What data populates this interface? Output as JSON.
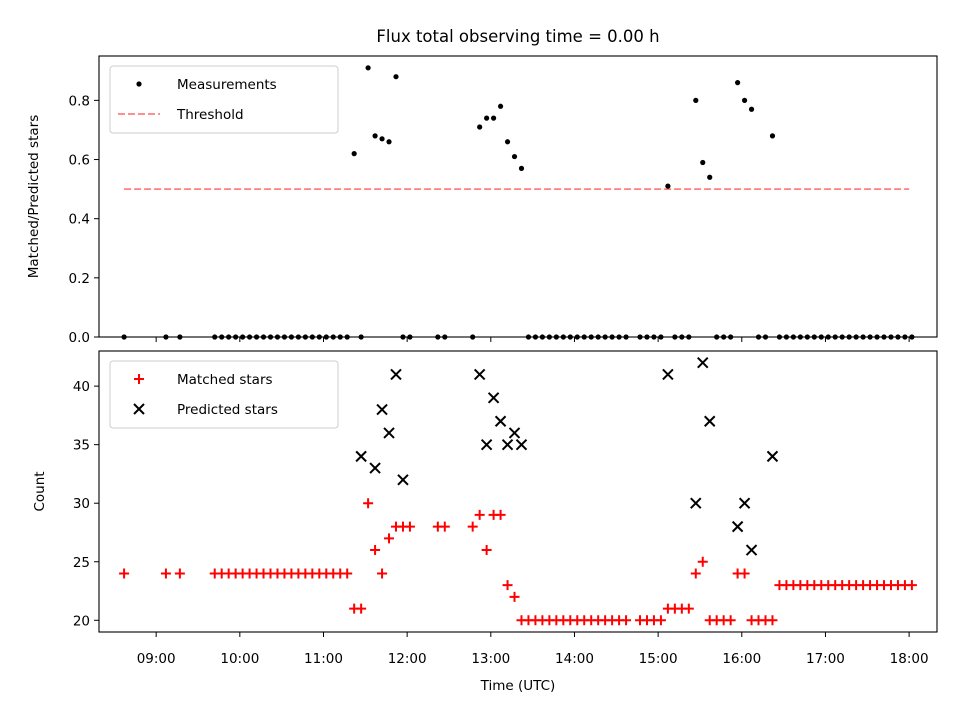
{
  "chart_data": [
    {
      "type": "scatter",
      "title": "Flux total observing time = 0.00 h",
      "ylabel": "Matched/Predicted stars",
      "xlabel": "",
      "ylim": [
        0,
        0.95
      ],
      "yticks": [
        "0.0",
        "0.2",
        "0.4",
        "0.6",
        "0.8"
      ],
      "ytick_values": [
        0,
        0.2,
        0.4,
        0.6,
        0.8
      ],
      "legend_position": "top-left",
      "threshold": {
        "name": "Threshold",
        "value": 0.5,
        "x_range": [
          "08:37",
          "18:00"
        ],
        "color": "#ff7f7f",
        "style": "dashed"
      },
      "series": [
        {
          "name": "Measurements",
          "color": "#000000",
          "marker": "dot",
          "x": [
            "08:37",
            "09:07",
            "09:17",
            "09:42",
            "09:47",
            "09:52",
            "09:57",
            "10:02",
            "10:07",
            "10:12",
            "10:17",
            "10:22",
            "10:27",
            "10:32",
            "10:37",
            "10:42",
            "10:47",
            "10:52",
            "10:57",
            "11:02",
            "11:07",
            "11:12",
            "11:17",
            "11:22",
            "11:27",
            "11:32",
            "11:37",
            "11:42",
            "11:47",
            "11:52",
            "11:57",
            "12:02",
            "12:22",
            "12:27",
            "12:47",
            "12:52",
            "12:57",
            "13:02",
            "13:07",
            "13:12",
            "13:17",
            "13:22",
            "13:27",
            "13:32",
            "13:37",
            "13:42",
            "13:47",
            "13:52",
            "13:57",
            "14:02",
            "14:07",
            "14:12",
            "14:17",
            "14:22",
            "14:27",
            "14:32",
            "14:37",
            "14:47",
            "14:52",
            "14:57",
            "15:02",
            "15:07",
            "15:12",
            "15:17",
            "15:22",
            "15:27",
            "15:32",
            "15:37",
            "15:42",
            "15:47",
            "15:52",
            "15:57",
            "16:02",
            "16:07",
            "16:12",
            "16:17",
            "16:22",
            "16:27",
            "16:32",
            "16:37",
            "16:42",
            "16:47",
            "16:52",
            "16:57",
            "17:02",
            "17:07",
            "17:12",
            "17:17",
            "17:22",
            "17:27",
            "17:32",
            "17:37",
            "17:42",
            "17:47",
            "17:52",
            "17:57",
            "18:02"
          ],
          "y": [
            0,
            0,
            0,
            0,
            0,
            0,
            0,
            0,
            0,
            0,
            0,
            0,
            0,
            0,
            0,
            0,
            0,
            0,
            0,
            0,
            0,
            0,
            0,
            0.62,
            0,
            0.91,
            0.68,
            0.67,
            0.66,
            0.88,
            0,
            0,
            0,
            0,
            0,
            0.71,
            0.74,
            0.74,
            0.78,
            0.66,
            0.61,
            0.57,
            0,
            0,
            0,
            0,
            0,
            0,
            0,
            0,
            0,
            0,
            0,
            0,
            0,
            0,
            0,
            0,
            0,
            0,
            0,
            0.51,
            0,
            0,
            0,
            0.8,
            0.59,
            0.54,
            0,
            0,
            0,
            0.86,
            0.8,
            0.77,
            0,
            0,
            0.68,
            0,
            0,
            0,
            0,
            0,
            0,
            0,
            0,
            0,
            0,
            0,
            0,
            0,
            0,
            0,
            0,
            0,
            0,
            0,
            0
          ]
        }
      ]
    },
    {
      "type": "scatter",
      "title": "",
      "ylabel": "Count",
      "xlabel": "Time (UTC)",
      "ylim": [
        19,
        43
      ],
      "yticks": [
        "20",
        "25",
        "30",
        "35",
        "40"
      ],
      "ytick_values": [
        20,
        25,
        30,
        35,
        40
      ],
      "x_axis_range": [
        "08:19",
        "18:20"
      ],
      "xticks": [
        "09:00",
        "10:00",
        "11:00",
        "12:00",
        "13:00",
        "14:00",
        "15:00",
        "16:00",
        "17:00",
        "18:00"
      ],
      "legend_position": "top-left",
      "series": [
        {
          "name": "Matched stars",
          "color": "#ff0000",
          "marker": "plus",
          "x": [
            "08:37",
            "09:07",
            "09:17",
            "09:42",
            "09:47",
            "09:52",
            "09:57",
            "10:02",
            "10:07",
            "10:12",
            "10:17",
            "10:22",
            "10:27",
            "10:32",
            "10:37",
            "10:42",
            "10:47",
            "10:52",
            "10:57",
            "11:02",
            "11:07",
            "11:12",
            "11:17",
            "11:22",
            "11:27",
            "11:32",
            "11:37",
            "11:42",
            "11:47",
            "11:52",
            "11:57",
            "12:02",
            "12:22",
            "12:27",
            "12:47",
            "12:52",
            "12:57",
            "13:02",
            "13:07",
            "13:12",
            "13:17",
            "13:22",
            "13:27",
            "13:32",
            "13:37",
            "13:42",
            "13:47",
            "13:52",
            "13:57",
            "14:02",
            "14:07",
            "14:12",
            "14:17",
            "14:22",
            "14:27",
            "14:32",
            "14:37",
            "14:47",
            "14:52",
            "14:57",
            "15:02",
            "15:07",
            "15:12",
            "15:17",
            "15:22",
            "15:27",
            "15:32",
            "15:37",
            "15:42",
            "15:47",
            "15:52",
            "15:57",
            "16:02",
            "16:07",
            "16:12",
            "16:17",
            "16:22",
            "16:27",
            "16:32",
            "16:37",
            "16:42",
            "16:47",
            "16:52",
            "16:57",
            "17:02",
            "17:07",
            "17:12",
            "17:17",
            "17:22",
            "17:27",
            "17:32",
            "17:37",
            "17:42",
            "17:47",
            "17:52",
            "17:57",
            "18:02"
          ],
          "y": [
            24,
            24,
            24,
            24,
            24,
            24,
            24,
            24,
            24,
            24,
            24,
            24,
            24,
            24,
            24,
            24,
            24,
            24,
            24,
            24,
            24,
            24,
            24,
            21,
            21,
            30,
            26,
            24,
            27,
            28,
            28,
            28,
            28,
            28,
            28,
            29,
            26,
            29,
            29,
            23,
            22,
            20,
            20,
            20,
            20,
            20,
            20,
            20,
            20,
            20,
            20,
            20,
            20,
            20,
            20,
            20,
            20,
            20,
            20,
            20,
            20,
            21,
            21,
            21,
            21,
            24,
            25,
            20,
            20,
            20,
            20,
            24,
            24,
            20,
            20,
            20,
            20,
            23,
            23,
            23,
            23,
            23,
            23,
            23,
            23,
            23,
            23,
            23,
            23,
            23,
            23,
            23,
            23,
            23,
            23,
            23,
            23
          ]
        },
        {
          "name": "Predicted stars",
          "color": "#000000",
          "marker": "cross",
          "x": [
            "11:27",
            "11:37",
            "11:42",
            "11:47",
            "11:52",
            "11:57",
            "12:52",
            "12:57",
            "13:02",
            "13:07",
            "13:12",
            "13:17",
            "13:22",
            "15:07",
            "15:27",
            "15:32",
            "15:37",
            "15:57",
            "16:02",
            "16:07",
            "16:22"
          ],
          "y": [
            34,
            33,
            38,
            36,
            41,
            32,
            41,
            35,
            39,
            37,
            35,
            36,
            35,
            41,
            30,
            42,
            37,
            28,
            30,
            26,
            34
          ]
        }
      ]
    }
  ]
}
